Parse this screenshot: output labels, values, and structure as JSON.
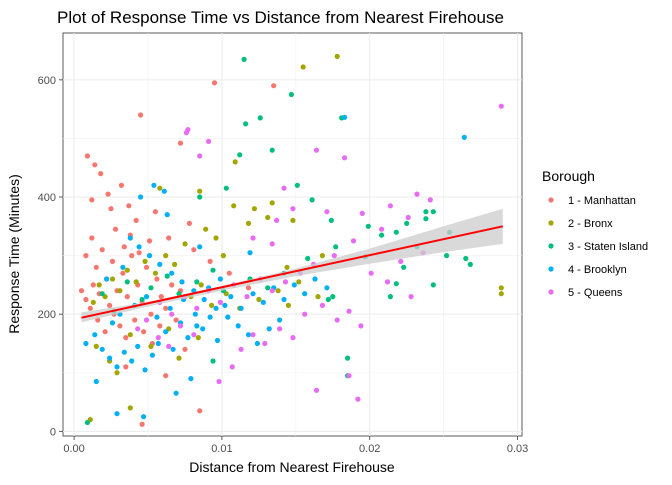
{
  "chart_data": {
    "type": "scatter",
    "title": "Plot of Response Time vs Distance from Nearest Firehouse",
    "xlabel": "Distance from Nearest Firehouse",
    "ylabel": "Response Time (Minutes)",
    "xlim": [
      -0.00075,
      0.0303
    ],
    "ylim": [
      -8,
      680
    ],
    "x_ticks": [
      0.0,
      0.01,
      0.02,
      0.03
    ],
    "x_tick_labels": [
      "0.00",
      "0.01",
      "0.02",
      "0.03"
    ],
    "y_ticks": [
      0,
      200,
      400,
      600
    ],
    "y_tick_labels": [
      "0",
      "200",
      "400",
      "600"
    ],
    "grid": true,
    "legend": {
      "title": "Borough",
      "placement": "right"
    },
    "series": [
      {
        "name": "1 - Manhattan",
        "color": "#F8766D",
        "points": [
          [
            0.0009,
            470
          ],
          [
            0.0014,
            455
          ],
          [
            0.0018,
            440
          ],
          [
            0.0045,
            540
          ],
          [
            0.0095,
            595
          ],
          [
            0.0135,
            590
          ],
          [
            0.0072,
            492
          ],
          [
            0.0032,
            420
          ],
          [
            0.0025,
            380
          ],
          [
            0.0042,
            360
          ],
          [
            0.0008,
            300
          ],
          [
            0.0012,
            330
          ],
          [
            0.0015,
            280
          ],
          [
            0.0019,
            310
          ],
          [
            0.0022,
            260
          ],
          [
            0.0026,
            290
          ],
          [
            0.0029,
            240
          ],
          [
            0.0033,
            270
          ],
          [
            0.0036,
            230
          ],
          [
            0.0039,
            300
          ],
          [
            0.0043,
            250
          ],
          [
            0.0046,
            220
          ],
          [
            0.0049,
            280
          ],
          [
            0.0052,
            200
          ],
          [
            0.0056,
            260
          ],
          [
            0.0059,
            230
          ],
          [
            0.0062,
            210
          ],
          [
            0.0066,
            250
          ],
          [
            0.0069,
            190
          ],
          [
            0.0072,
            240
          ],
          [
            0.0011,
            210
          ],
          [
            0.0016,
            190
          ],
          [
            0.0021,
            170
          ],
          [
            0.0027,
            200
          ],
          [
            0.0031,
            180
          ],
          [
            0.0035,
            160
          ],
          [
            0.0041,
            190
          ],
          [
            0.0047,
            170
          ],
          [
            0.0053,
            150
          ],
          [
            0.0058,
            180
          ],
          [
            0.0005,
            240
          ],
          [
            0.0008,
            225
          ],
          [
            0.0013,
            250
          ],
          [
            0.0017,
            235
          ],
          [
            0.0024,
            215
          ],
          [
            0.0028,
            345
          ],
          [
            0.0034,
            315
          ],
          [
            0.0038,
            335
          ],
          [
            0.0044,
            305
          ],
          [
            0.0051,
            325
          ],
          [
            0.0012,
            395
          ],
          [
            0.0023,
            405
          ],
          [
            0.0037,
            385
          ],
          [
            0.0055,
            375
          ],
          [
            0.0078,
            355
          ],
          [
            0.0046,
            12
          ],
          [
            0.0085,
            35
          ],
          [
            0.0062,
            95
          ],
          [
            0.0035,
            110
          ],
          [
            0.0075,
            140
          ],
          [
            0.0105,
            270
          ],
          [
            0.0118,
            245
          ],
          [
            0.0092,
            290
          ],
          [
            0.0064,
            330
          ],
          [
            0.0081,
            310
          ]
        ]
      },
      {
        "name": "2 - Bronx",
        "color": "#A3A500",
        "points": [
          [
            0.0178,
            640
          ],
          [
            0.0155,
            622
          ],
          [
            0.0289,
            245
          ],
          [
            0.0289,
            235
          ],
          [
            0.0085,
            410
          ],
          [
            0.0131,
            365
          ],
          [
            0.0122,
            380
          ],
          [
            0.0148,
            360
          ],
          [
            0.0168,
            300
          ],
          [
            0.0108,
            385
          ],
          [
            0.0096,
            330
          ],
          [
            0.0089,
            345
          ],
          [
            0.0101,
            300
          ],
          [
            0.0075,
            320
          ],
          [
            0.0068,
            285
          ],
          [
            0.0062,
            300
          ],
          [
            0.0055,
            270
          ],
          [
            0.0048,
            290
          ],
          [
            0.0042,
            255
          ],
          [
            0.0036,
            275
          ],
          [
            0.0031,
            240
          ],
          [
            0.0026,
            260
          ],
          [
            0.0021,
            230
          ],
          [
            0.0017,
            250
          ],
          [
            0.0013,
            220
          ],
          [
            0.0079,
            230
          ],
          [
            0.0086,
            250
          ],
          [
            0.0093,
            215
          ],
          [
            0.0103,
            235
          ],
          [
            0.0112,
            210
          ],
          [
            0.0125,
            225
          ],
          [
            0.0138,
            240
          ],
          [
            0.0145,
            215
          ],
          [
            0.0152,
            255
          ],
          [
            0.0165,
            230
          ],
          [
            0.0038,
            165
          ],
          [
            0.0052,
            145
          ],
          [
            0.0064,
            175
          ],
          [
            0.0071,
            125
          ],
          [
            0.0084,
            160
          ],
          [
            0.0015,
            145
          ],
          [
            0.0024,
            120
          ],
          [
            0.0029,
            100
          ],
          [
            0.0011,
            20
          ],
          [
            0.0038,
            40
          ],
          [
            0.0118,
            355
          ],
          [
            0.0134,
            390
          ],
          [
            0.0109,
            460
          ],
          [
            0.0058,
            415
          ],
          [
            0.0144,
            280
          ]
        ]
      },
      {
        "name": "3 - Staten Island",
        "color": "#00BF7D",
        "points": [
          [
            0.0115,
            635
          ],
          [
            0.0147,
            575
          ],
          [
            0.0116,
            525
          ],
          [
            0.0126,
            535
          ],
          [
            0.0181,
            535
          ],
          [
            0.0134,
            480
          ],
          [
            0.0112,
            472
          ],
          [
            0.0103,
            415
          ],
          [
            0.0085,
            400
          ],
          [
            0.0151,
            420
          ],
          [
            0.0161,
            395
          ],
          [
            0.0174,
            360
          ],
          [
            0.0199,
            350
          ],
          [
            0.0218,
            340
          ],
          [
            0.0232,
            315
          ],
          [
            0.0214,
            230
          ],
          [
            0.0223,
            280
          ],
          [
            0.0243,
            250
          ],
          [
            0.0252,
            300
          ],
          [
            0.0265,
            295
          ],
          [
            0.0268,
            285
          ],
          [
            0.0254,
            340
          ],
          [
            0.0243,
            375
          ],
          [
            0.0225,
            355
          ],
          [
            0.0208,
            335
          ],
          [
            0.0177,
            315
          ],
          [
            0.0158,
            295
          ],
          [
            0.0142,
            270
          ],
          [
            0.0131,
            245
          ],
          [
            0.0119,
            260
          ],
          [
            0.0101,
            240
          ],
          [
            0.0094,
            275
          ],
          [
            0.0083,
            255
          ],
          [
            0.0071,
            235
          ],
          [
            0.0063,
            265
          ],
          [
            0.0052,
            245
          ],
          [
            0.0046,
            225
          ],
          [
            0.0036,
            255
          ],
          [
            0.0027,
            205
          ],
          [
            0.0019,
            235
          ],
          [
            0.0009,
            15
          ],
          [
            0.0094,
            120
          ],
          [
            0.0185,
            125
          ],
          [
            0.0185,
            95
          ],
          [
            0.0172,
            225
          ],
          [
            0.0197,
            298
          ],
          [
            0.0238,
            375
          ],
          [
            0.0238,
            363
          ],
          [
            0.0175,
            230
          ],
          [
            0.0218,
            252
          ]
        ]
      },
      {
        "name": "4 - Brooklyn",
        "color": "#00B0F6",
        "points": [
          [
            0.0264,
            502
          ],
          [
            0.0183,
            536
          ],
          [
            0.0045,
            400
          ],
          [
            0.0054,
            420
          ],
          [
            0.0061,
            410
          ],
          [
            0.0038,
            330
          ],
          [
            0.0044,
            315
          ],
          [
            0.0051,
            300
          ],
          [
            0.0058,
            285
          ],
          [
            0.0066,
            270
          ],
          [
            0.0073,
            255
          ],
          [
            0.0081,
            240
          ],
          [
            0.0088,
            225
          ],
          [
            0.0096,
            210
          ],
          [
            0.0104,
            195
          ],
          [
            0.0111,
            180
          ],
          [
            0.0118,
            165
          ],
          [
            0.0124,
            150
          ],
          [
            0.0132,
            175
          ],
          [
            0.0139,
            190
          ],
          [
            0.0008,
            150
          ],
          [
            0.0014,
            165
          ],
          [
            0.0019,
            140
          ],
          [
            0.0024,
            125
          ],
          [
            0.0029,
            110
          ],
          [
            0.0034,
            135
          ],
          [
            0.0039,
            120
          ],
          [
            0.0043,
            145
          ],
          [
            0.0048,
            105
          ],
          [
            0.0053,
            130
          ],
          [
            0.0057,
            150
          ],
          [
            0.0062,
            170
          ],
          [
            0.0067,
            140
          ],
          [
            0.0072,
            185
          ],
          [
            0.0077,
            160
          ],
          [
            0.0082,
            200
          ],
          [
            0.0087,
            175
          ],
          [
            0.0092,
            195
          ],
          [
            0.0097,
            155
          ],
          [
            0.0102,
            215
          ],
          [
            0.0106,
            230
          ],
          [
            0.0113,
            210
          ],
          [
            0.0121,
            235
          ],
          [
            0.0128,
            220
          ],
          [
            0.0135,
            245
          ],
          [
            0.0142,
            225
          ],
          [
            0.0149,
            250
          ],
          [
            0.0156,
            235
          ],
          [
            0.0163,
            260
          ],
          [
            0.0171,
            245
          ],
          [
            0.0029,
            30
          ],
          [
            0.0047,
            25
          ],
          [
            0.0069,
            65
          ],
          [
            0.0079,
            90
          ],
          [
            0.0015,
            85
          ],
          [
            0.0022,
            260
          ],
          [
            0.0033,
            280
          ],
          [
            0.0063,
            370
          ],
          [
            0.0085,
            315
          ],
          [
            0.0119,
            305
          ],
          [
            0.0026,
            185
          ],
          [
            0.0031,
            200
          ],
          [
            0.0041,
            215
          ],
          [
            0.0049,
            230
          ],
          [
            0.0056,
            195
          ],
          [
            0.0065,
            210
          ],
          [
            0.0074,
            225
          ],
          [
            0.0083,
            180
          ],
          [
            0.0091,
            245
          ],
          [
            0.0099,
            260
          ]
        ]
      },
      {
        "name": "5 - Queens",
        "color": "#E76BF3",
        "points": [
          [
            0.0289,
            555
          ],
          [
            0.0077,
            515
          ],
          [
            0.0076,
            510
          ],
          [
            0.0183,
            467
          ],
          [
            0.0164,
            480
          ],
          [
            0.0148,
            380
          ],
          [
            0.0137,
            360
          ],
          [
            0.0171,
            375
          ],
          [
            0.0195,
            372
          ],
          [
            0.0214,
            385
          ],
          [
            0.0232,
            405
          ],
          [
            0.0241,
            395
          ],
          [
            0.0226,
            365
          ],
          [
            0.0208,
            345
          ],
          [
            0.0189,
            325
          ],
          [
            0.0176,
            300
          ],
          [
            0.0162,
            285
          ],
          [
            0.0153,
            270
          ],
          [
            0.0143,
            255
          ],
          [
            0.0134,
            240
          ],
          [
            0.0126,
            260
          ],
          [
            0.0117,
            230
          ],
          [
            0.0108,
            250
          ],
          [
            0.0099,
            220
          ],
          [
            0.0091,
            240
          ],
          [
            0.0083,
            210
          ],
          [
            0.0075,
            230
          ],
          [
            0.0066,
            200
          ],
          [
            0.0058,
            220
          ],
          [
            0.0049,
            190
          ],
          [
            0.0156,
            200
          ],
          [
            0.0168,
            215
          ],
          [
            0.0178,
            190
          ],
          [
            0.0186,
            205
          ],
          [
            0.0194,
            180
          ],
          [
            0.0148,
            160
          ],
          [
            0.0139,
            175
          ],
          [
            0.0129,
            150
          ],
          [
            0.0121,
            165
          ],
          [
            0.0113,
            140
          ],
          [
            0.0186,
            95
          ],
          [
            0.0192,
            55
          ],
          [
            0.0164,
            70
          ],
          [
            0.0107,
            110
          ],
          [
            0.0098,
            85
          ],
          [
            0.0228,
            230
          ],
          [
            0.0236,
            305
          ],
          [
            0.0221,
            290
          ],
          [
            0.0212,
            255
          ],
          [
            0.0201,
            270
          ],
          [
            0.0091,
            495
          ],
          [
            0.0085,
            470
          ],
          [
            0.0142,
            415
          ],
          [
            0.0121,
            330
          ],
          [
            0.0134,
            320
          ],
          [
            0.0072,
            180
          ],
          [
            0.0081,
            165
          ],
          [
            0.0064,
            145
          ],
          [
            0.0057,
            160
          ],
          [
            0.0043,
            175
          ]
        ]
      }
    ],
    "trend_line": {
      "method": "linear",
      "color": "#FF0000",
      "band_color": "#cccccc",
      "points": [
        [
          0.0005,
          194
        ],
        [
          0.029,
          350
        ]
      ],
      "band": [
        [
          0.0005,
          186,
          203
        ],
        [
          0.005,
          213,
          221
        ],
        [
          0.01,
          240,
          248
        ],
        [
          0.015,
          265,
          278
        ],
        [
          0.02,
          286,
          312
        ],
        [
          0.025,
          306,
          350
        ],
        [
          0.029,
          320,
          380
        ]
      ]
    }
  }
}
